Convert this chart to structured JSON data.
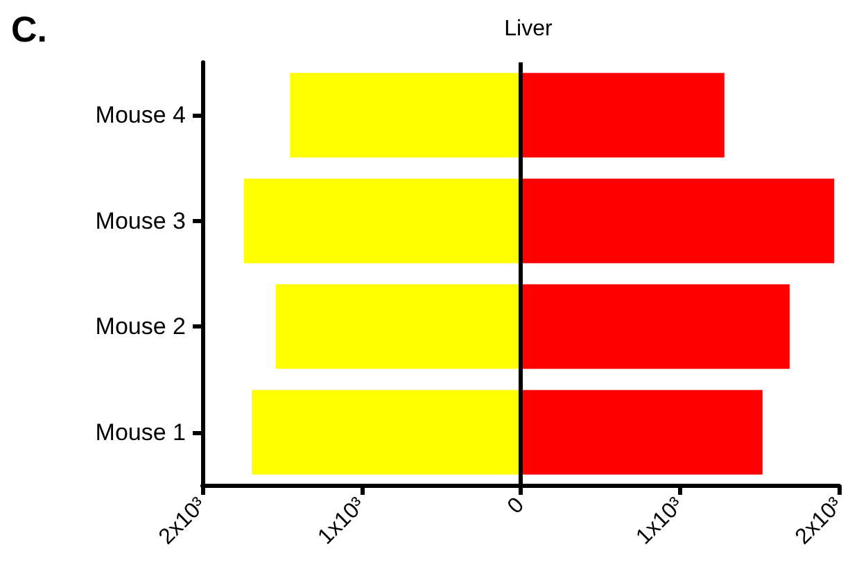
{
  "chart_data": {
    "type": "bar",
    "orientation": "horizontal",
    "title": "Liver",
    "annotations": [
      "C."
    ],
    "categories": [
      "Mouse 4",
      "Mouse 3",
      "Mouse 2",
      "Mouse 1"
    ],
    "series": [
      {
        "color": "#ffff00",
        "values": [
          -1450,
          -1740,
          -1540,
          -1690
        ]
      },
      {
        "color": "#ff0000",
        "values": [
          1280,
          1970,
          1690,
          1520
        ]
      }
    ],
    "xlim": [
      -2000,
      2000
    ],
    "xticks": [
      {
        "value": -2000,
        "label": "2x10³"
      },
      {
        "value": -1000,
        "label": "1x10³"
      },
      0,
      {
        "value": 1000,
        "label": "1x10³"
      },
      {
        "value": 2000,
        "label": "2x10³"
      }
    ],
    "ref_lines": [
      {
        "axis": "x",
        "value": 0,
        "color": "#000000"
      }
    ],
    "grid": false,
    "stacked": true
  }
}
